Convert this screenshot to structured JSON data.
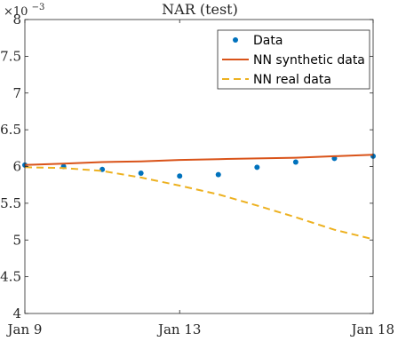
{
  "chart_data": {
    "type": "line",
    "title": "NAR (test)",
    "xlabel": "",
    "ylabel": "",
    "y_exponent_label": "×10",
    "y_exponent_power": "−3",
    "x_ticks": [
      {
        "day": 9,
        "label": "Jan 9"
      },
      {
        "day": 13,
        "label": "Jan 13"
      },
      {
        "day": 18,
        "label": "Jan 18"
      }
    ],
    "y_ticks": [
      {
        "value": 4.0,
        "label": "4"
      },
      {
        "value": 4.5,
        "label": "4.5"
      },
      {
        "value": 5.0,
        "label": "5"
      },
      {
        "value": 5.5,
        "label": "5.5"
      },
      {
        "value": 6.0,
        "label": "6"
      },
      {
        "value": 6.5,
        "label": "6.5"
      },
      {
        "value": 7.0,
        "label": "7"
      },
      {
        "value": 7.5,
        "label": "7.5"
      },
      {
        "value": 8.0,
        "label": "8"
      }
    ],
    "xlim": [
      9,
      18
    ],
    "ylim": [
      4,
      8
    ],
    "grid": false,
    "legend_position": "top-right",
    "series": [
      {
        "name": "Data",
        "style": "markers",
        "color": "#0072BD",
        "x": [
          9,
          10,
          11,
          12,
          13,
          14,
          15,
          16,
          17,
          18
        ],
        "y": [
          6.02,
          6.0,
          5.96,
          5.91,
          5.87,
          5.89,
          5.99,
          6.06,
          6.11,
          6.14
        ]
      },
      {
        "name": "NN synthetic data",
        "style": "solid",
        "color": "#D95319",
        "x": [
          9,
          10,
          11,
          12,
          13,
          14,
          15,
          16,
          17,
          18
        ],
        "y": [
          6.02,
          6.04,
          6.06,
          6.07,
          6.09,
          6.1,
          6.11,
          6.12,
          6.14,
          6.16
        ]
      },
      {
        "name": "NN real data",
        "style": "dashed",
        "color": "#EDB120",
        "x": [
          9,
          10,
          11,
          12,
          13,
          14,
          15,
          16,
          17,
          18
        ],
        "y": [
          5.99,
          5.98,
          5.94,
          5.85,
          5.74,
          5.62,
          5.47,
          5.31,
          5.14,
          5.01
        ]
      }
    ]
  }
}
